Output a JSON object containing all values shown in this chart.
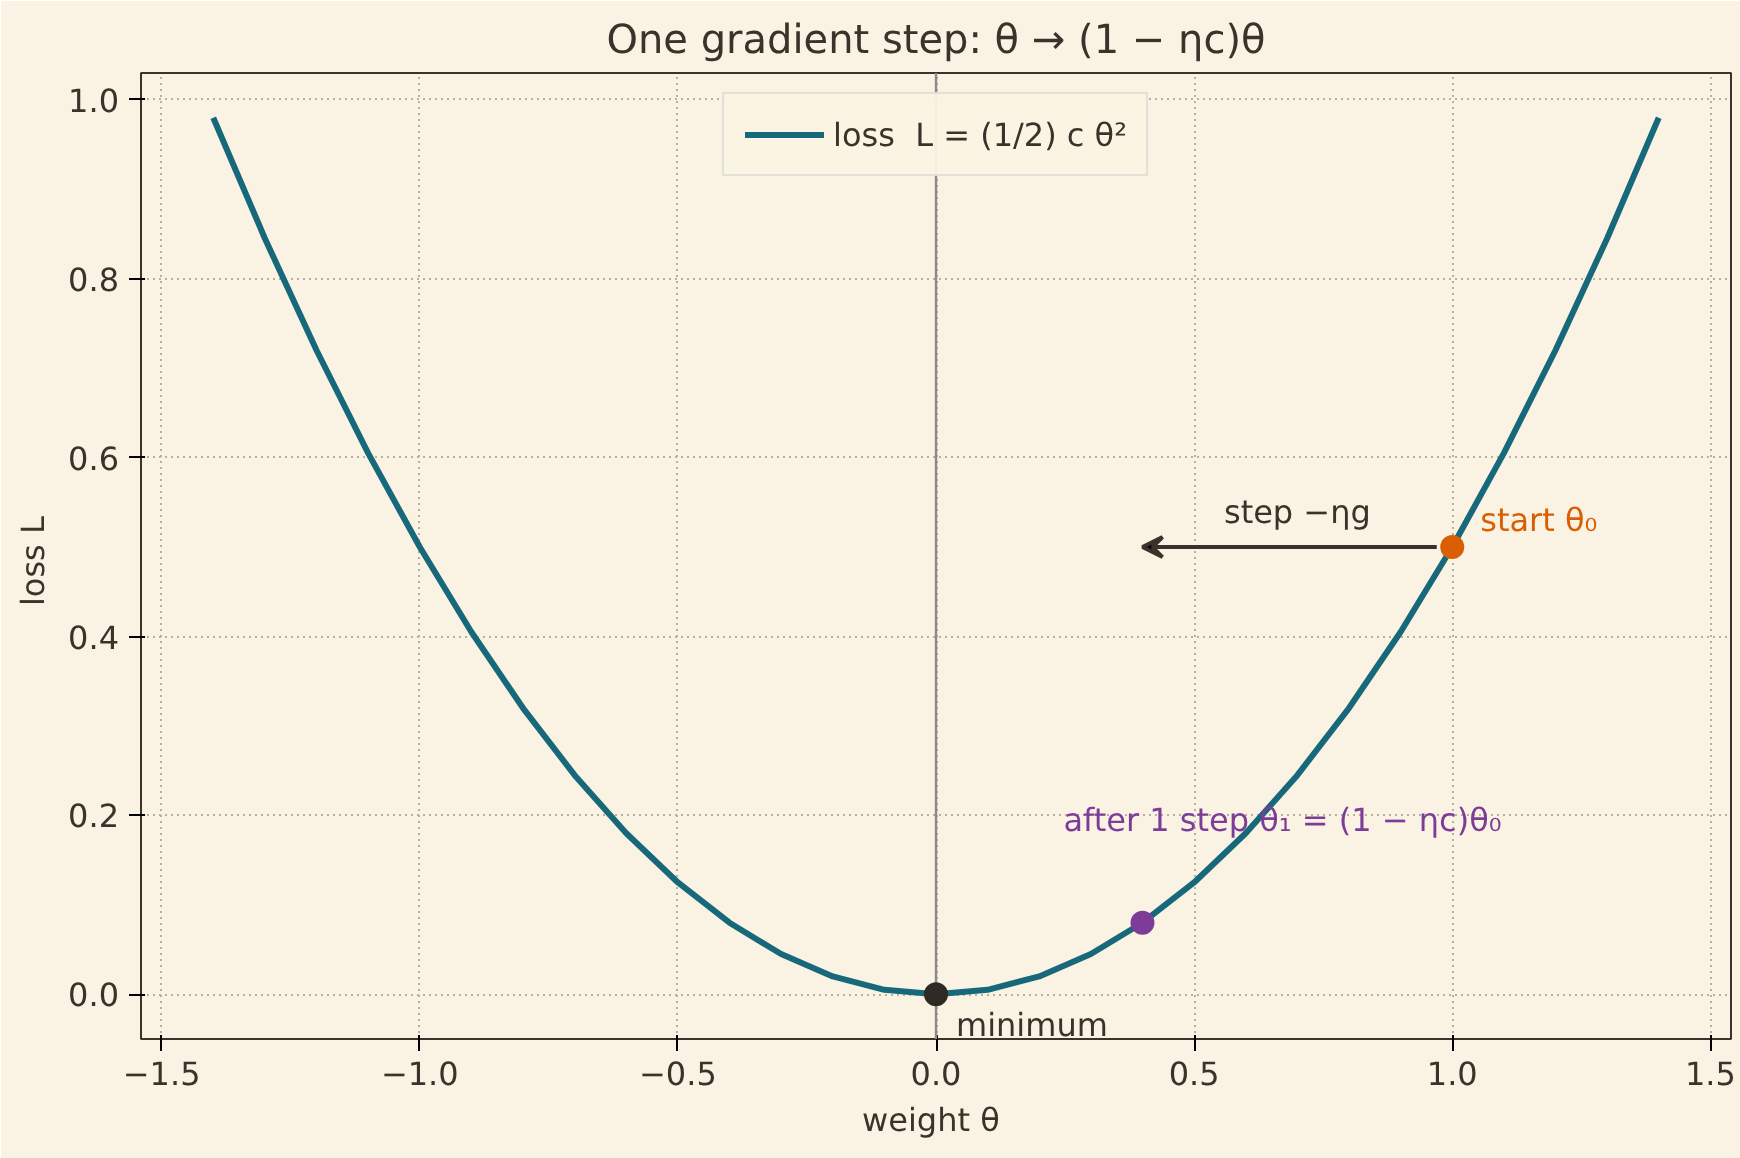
{
  "chart_data": {
    "type": "line",
    "title": "One gradient step: θ → (1 − ηc)θ",
    "xlabel": "weight  θ",
    "ylabel": "loss  L",
    "series": [
      {
        "name": "loss  L = (1/2) c θ²",
        "color": "#17687a",
        "x": [
          -1.4,
          -1.3,
          -1.2,
          -1.1,
          -1.0,
          -0.9,
          -0.8,
          -0.7,
          -0.6,
          -0.5,
          -0.4,
          -0.3,
          -0.2,
          -0.1,
          0,
          0.1,
          0.2,
          0.3,
          0.4,
          0.5,
          0.6,
          0.7,
          0.8,
          0.9,
          1.0,
          1.1,
          1.2,
          1.3,
          1.4
        ],
        "values": [
          0.98,
          0.845,
          0.72,
          0.605,
          0.5,
          0.405,
          0.32,
          0.245,
          0.18,
          0.125,
          0.08,
          0.045,
          0.02,
          0.005,
          0,
          0.005,
          0.02,
          0.045,
          0.08,
          0.125,
          0.18,
          0.245,
          0.32,
          0.405,
          0.5,
          0.605,
          0.72,
          0.845,
          0.98
        ]
      },
      {
        "type": "scatter",
        "marker": "circle",
        "color": "#d95f02",
        "x": [
          1.0
        ],
        "values": [
          0.5
        ]
      },
      {
        "type": "scatter",
        "marker": "circle",
        "color": "#7d3c98",
        "x": [
          0.4
        ],
        "values": [
          0.08
        ]
      },
      {
        "type": "scatter",
        "marker": "circle",
        "color": "#2f2a26",
        "x": [
          0
        ],
        "values": [
          0
        ]
      }
    ],
    "annotations": [
      "step −ηg",
      {
        "text": "start θ₀",
        "x": 1.0,
        "y": 0.5
      },
      {
        "text": "after 1 step θ₁ = (1 − ηc)θ₀",
        "x": 0.4,
        "y": 0.08
      },
      {
        "text": "minimum",
        "x": 0,
        "y": 0
      }
    ],
    "ref_lines": [
      {
        "axis": "x",
        "value": 0,
        "color": "#8a8a8a"
      }
    ],
    "xlim": [
      -1.54,
      1.54
    ],
    "ylim": [
      -0.05,
      1.03
    ],
    "xticks": [
      {
        "value": -1.5,
        "label": "−1.5"
      },
      {
        "value": -1.0,
        "label": "−1.0"
      },
      {
        "value": -0.5,
        "label": "−0.5"
      },
      {
        "value": 0,
        "label": "0.0"
      },
      0.5,
      {
        "value": 1,
        "label": "1.0"
      },
      1.5
    ],
    "yticks": [
      {
        "value": 0,
        "label": "0.0"
      },
      0.2,
      0.4,
      0.6,
      0.8,
      {
        "value": 1,
        "label": "1.0"
      }
    ],
    "grid": true,
    "legend": "top",
    "line_style": "solid"
  }
}
